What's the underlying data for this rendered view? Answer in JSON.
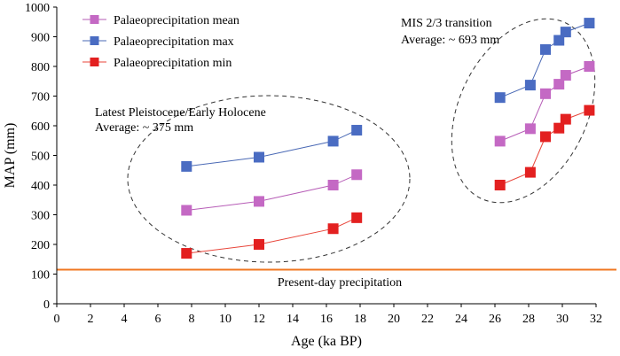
{
  "chart_data": {
    "type": "line",
    "title": "",
    "xlabel": "Age (ka BP)",
    "ylabel": "MAP (mm)",
    "xlim": [
      0,
      32
    ],
    "ylim": [
      0,
      1000
    ],
    "xticks": [
      0,
      2,
      4,
      6,
      8,
      10,
      12,
      14,
      16,
      18,
      20,
      22,
      24,
      26,
      28,
      30,
      32
    ],
    "yticks": [
      0,
      100,
      200,
      300,
      400,
      500,
      600,
      700,
      800,
      900,
      1000
    ],
    "grid": false,
    "legend_position": "top-left",
    "series": [
      {
        "name": "Palaeoprecipitation mean",
        "color": "#b65bb6",
        "marker_color": "#c469c4",
        "x": [
          7.7,
          12.0,
          16.4,
          17.8,
          26.3,
          28.1,
          29.0,
          29.8,
          30.2,
          31.6
        ],
        "values": [
          315,
          345,
          400,
          435,
          548,
          590,
          708,
          740,
          770,
          800
        ]
      },
      {
        "name": "Palaeoprecipitation max",
        "color": "#4a69b5",
        "marker_color": "#4a6cc2",
        "x": [
          7.7,
          12.0,
          16.4,
          17.8,
          26.3,
          28.1,
          29.0,
          29.8,
          30.2,
          31.6
        ],
        "values": [
          463,
          494,
          548,
          585,
          695,
          737,
          857,
          888,
          916,
          946
        ]
      },
      {
        "name": "Palaeoprecipitation min",
        "color": "#e8453a",
        "marker_color": "#e32020",
        "x": [
          7.7,
          12.0,
          16.4,
          17.8,
          26.3,
          28.1,
          29.0,
          29.8,
          30.2,
          31.6
        ],
        "values": [
          170,
          200,
          253,
          290,
          400,
          443,
          563,
          592,
          622,
          652
        ]
      }
    ],
    "reference_line": {
      "label": "Present-day precipitation",
      "value": 115,
      "color": "#f07722"
    },
    "annotations": [
      {
        "line1": "Latest Pleistocene/Early Holocene",
        "line2": "Average: ~ 375 mm"
      },
      {
        "line1": "MIS 2/3 transition",
        "line2": "Average: ~ 693 mm"
      }
    ]
  }
}
